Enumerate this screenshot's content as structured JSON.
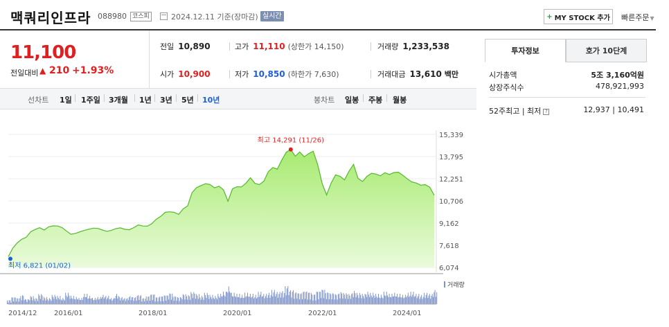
{
  "header": {
    "title": "맥쿼리인프라",
    "code": "088980",
    "market": "코스피",
    "date_text": "2024.12.11 기준(장마감)",
    "realtime": "실시간",
    "mystock_plus": "+",
    "mystock_label": "MY STOCK 추가",
    "quick_order": "빠른주문",
    "quick_order_arrow": "▼",
    "calendar_icon": "calendar-icon"
  },
  "price": {
    "now": "11,100",
    "change_label": "전일대비",
    "change_arrow": "▲",
    "change_value": "210",
    "change_rate": "+1.93%",
    "prev_close_label": "전일",
    "prev_close": "10,890",
    "open_label": "시가",
    "open": "10,900",
    "high_label": "고가",
    "high": "11,110",
    "upper_limit": "(상한가 14,150)",
    "low_label": "저가",
    "low": "10,850",
    "lower_limit": "(하한가 7,630)",
    "volume_label": "거래량",
    "volume": "1,233,538",
    "amount_label": "거래대금",
    "amount": "13,610",
    "amount_unit": "백만",
    "colors": {
      "up": "#e02020",
      "down": "#1f5fd6"
    }
  },
  "period_bar": {
    "line_label": "선차트",
    "line_items": [
      "1일",
      "1주일",
      "3개월",
      "1년",
      "3년",
      "5년",
      "10년"
    ],
    "selected_line": "10년",
    "candle_label": "봉차트",
    "candle_items": [
      "일봉",
      "주봉",
      "월봉"
    ]
  },
  "right_panel": {
    "tab_invest": "투자정보",
    "tab_hoga": "호가 10단계",
    "market_cap_label": "시가총액",
    "market_cap_value": "5조 3,160억원",
    "shares_label": "상장주식수",
    "shares_value": "478,921,993",
    "w52_label": "52주최고 | 최저",
    "w52_value": "12,937 | 10,491",
    "help_icon": "?"
  },
  "chart_data": {
    "type": "area",
    "y_ticks": [
      "15,339",
      "13,795",
      "12,251",
      "10,706",
      "9,162",
      "7,618",
      "6,074"
    ],
    "ylim": [
      6074,
      15339
    ],
    "x_ticks": [
      "2014/12",
      "2016/01",
      "2018/01",
      "2020/01",
      "2022/01",
      "2024/01"
    ],
    "max_label": "최고 14,291 (11/26)",
    "min_label": "최저 6,821 (01/02)",
    "volume_label": "거래량",
    "fill_color": "#b9ef8c",
    "line_color": "#55b82d",
    "max_dot_color": "#e02020",
    "min_dot_color": "#1f5fd6",
    "prices": [
      6821,
      7420,
      7780,
      8040,
      8180,
      8560,
      8720,
      8840,
      8680,
      8900,
      8970,
      8960,
      8850,
      8600,
      8380,
      8450,
      8560,
      8660,
      8740,
      8810,
      8790,
      8680,
      8590,
      8660,
      8780,
      8830,
      8730,
      8700,
      8850,
      9030,
      8960,
      8950,
      9120,
      9430,
      9630,
      9910,
      9950,
      9910,
      9770,
      10150,
      10360,
      11290,
      11640,
      11780,
      11910,
      11850,
      11620,
      11730,
      11480,
      10680,
      11550,
      11690,
      11680,
      11940,
      12320,
      11930,
      11840,
      12080,
      12750,
      13030,
      12920,
      13560,
      14100,
      14291,
      13820,
      14120,
      13780,
      14000,
      14170,
      13240,
      11920,
      11120,
      11950,
      12520,
      12420,
      12170,
      12780,
      13250,
      12280,
      12060,
      12420,
      12630,
      12580,
      12460,
      12670,
      12550,
      12680,
      12710,
      12490,
      12240,
      12030,
      11950,
      11800,
      11840,
      11660,
      11100
    ],
    "volumes": [
      0.2,
      0.35,
      0.3,
      0.45,
      0.25,
      0.4,
      0.3,
      0.5,
      0.35,
      0.3,
      0.45,
      0.4,
      0.3,
      0.55,
      0.4,
      0.35,
      0.3,
      0.5,
      0.4,
      0.3,
      0.35,
      0.45,
      0.4,
      0.3,
      0.5,
      0.35,
      0.3,
      0.4,
      0.35,
      0.45,
      0.3,
      0.4,
      0.5,
      0.35,
      0.4,
      0.45,
      0.55,
      0.4,
      0.35,
      0.5,
      0.45,
      0.6,
      0.5,
      0.4,
      0.55,
      0.45,
      0.4,
      0.5,
      0.6,
      0.85,
      0.55,
      0.5,
      0.45,
      0.55,
      0.5,
      0.45,
      0.6,
      0.5,
      0.55,
      0.7,
      0.6,
      0.65,
      0.9,
      0.7,
      0.6,
      0.55,
      0.65,
      0.6,
      0.5,
      0.65,
      0.75,
      0.6,
      0.55,
      0.5,
      0.6,
      0.55,
      0.5,
      0.65,
      0.55,
      0.5,
      0.6,
      0.55,
      0.5,
      0.45,
      0.6,
      0.5,
      0.55,
      0.5,
      0.45,
      0.55,
      0.6,
      0.5,
      0.45,
      0.55,
      0.5,
      0.7
    ]
  }
}
